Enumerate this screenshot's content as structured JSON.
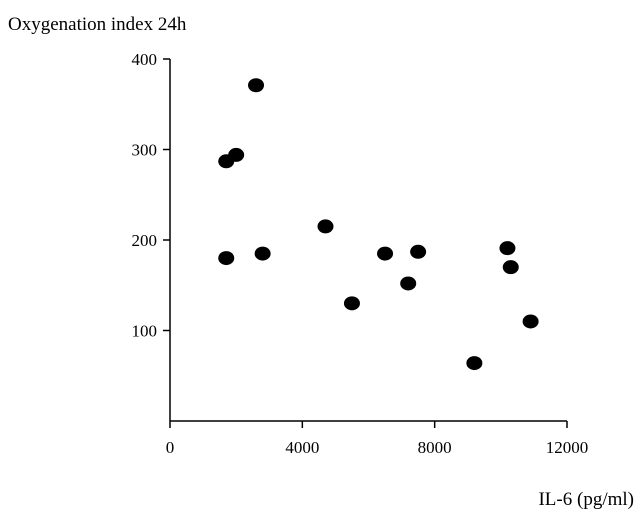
{
  "chart_data": {
    "type": "scatter",
    "title": "",
    "xlabel": "IL-6 (pg/ml)",
    "ylabel": "Oxygenation index 24h",
    "xlim": [
      0,
      12000
    ],
    "ylim": [
      0,
      400
    ],
    "x_ticks": [
      0,
      4000,
      8000,
      12000
    ],
    "x_tick_labels": [
      "0",
      "4000",
      "8000",
      "12000"
    ],
    "y_ticks": [
      100,
      200,
      300,
      400
    ],
    "y_tick_labels": [
      "100",
      "200",
      "300",
      "400"
    ],
    "grid": false,
    "legend": "none",
    "marker_color": "#000000",
    "series": [
      {
        "x": [
          2600,
          1700,
          2000,
          1700,
          2800,
          4700,
          5500,
          6500,
          7500,
          7200,
          9200,
          10200,
          10300,
          10900
        ],
        "y": [
          371,
          287,
          294,
          180,
          185,
          215,
          130,
          185,
          187,
          152,
          64,
          191,
          170,
          110
        ]
      }
    ]
  }
}
